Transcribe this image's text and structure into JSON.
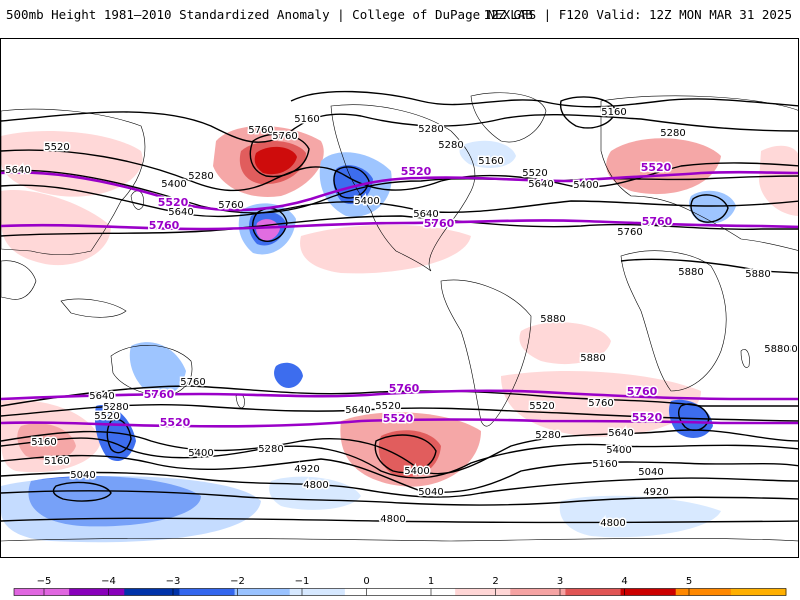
{
  "header": {
    "title": "500mb Height 1981–2010 Standardized Anomaly | College of DuPage NEXLAB",
    "run_info": "12Z GFS | F120 Valid: 12Z MON MAR 31 2025"
  },
  "map": {
    "contour_labels": [
      {
        "text": "5160",
        "kind": "height"
      },
      {
        "text": "5280",
        "kind": "height"
      },
      {
        "text": "5160",
        "kind": "height"
      },
      {
        "text": "5280",
        "kind": "height"
      },
      {
        "text": "5520",
        "kind": "height"
      },
      {
        "text": "5640",
        "kind": "height"
      },
      {
        "text": "5400",
        "kind": "height"
      },
      {
        "text": "5280",
        "kind": "height"
      },
      {
        "text": "5640",
        "kind": "height"
      },
      {
        "text": "5760",
        "kind": "height"
      },
      {
        "text": "5400",
        "kind": "height"
      },
      {
        "text": "5520",
        "kind": "height"
      },
      {
        "text": "5640",
        "kind": "height"
      },
      {
        "text": "5400",
        "kind": "height"
      },
      {
        "text": "5280",
        "kind": "height"
      },
      {
        "text": "5160",
        "kind": "height"
      },
      {
        "text": "5760",
        "kind": "height"
      },
      {
        "text": "5760",
        "kind": "height"
      },
      {
        "text": "5640",
        "kind": "height"
      },
      {
        "text": "5880",
        "kind": "height"
      },
      {
        "text": "5880",
        "kind": "height"
      },
      {
        "text": "5880",
        "kind": "height"
      },
      {
        "text": "5880",
        "kind": "height"
      },
      {
        "text": "5880",
        "kind": "height"
      },
      {
        "text": "5760",
        "kind": "height"
      },
      {
        "text": "5760",
        "kind": "height"
      },
      {
        "text": "5640",
        "kind": "height"
      },
      {
        "text": "5280",
        "kind": "height"
      },
      {
        "text": "5520",
        "kind": "height"
      },
      {
        "text": "5160",
        "kind": "height"
      },
      {
        "text": "5400",
        "kind": "height"
      },
      {
        "text": "5040",
        "kind": "height"
      },
      {
        "text": "5160",
        "kind": "height"
      },
      {
        "text": "5280",
        "kind": "height"
      },
      {
        "text": "4920",
        "kind": "height"
      },
      {
        "text": "4800",
        "kind": "height"
      },
      {
        "text": "5640",
        "kind": "height"
      },
      {
        "text": "5520",
        "kind": "height"
      },
      {
        "text": "5400",
        "kind": "height"
      },
      {
        "text": "5040",
        "kind": "height"
      },
      {
        "text": "5520",
        "kind": "height"
      },
      {
        "text": "5280",
        "kind": "height"
      },
      {
        "text": "5760",
        "kind": "height"
      },
      {
        "text": "5640",
        "kind": "height"
      },
      {
        "text": "5400",
        "kind": "height"
      },
      {
        "text": "5160",
        "kind": "height"
      },
      {
        "text": "5040",
        "kind": "height"
      },
      {
        "text": "4920",
        "kind": "height"
      },
      {
        "text": "4800",
        "kind": "height"
      },
      {
        "text": "4800",
        "kind": "height"
      },
      {
        "text": "5880",
        "kind": "height"
      },
      {
        "text": "5520",
        "kind": "highlight"
      },
      {
        "text": "5520",
        "kind": "highlight"
      },
      {
        "text": "5520",
        "kind": "highlight"
      },
      {
        "text": "5760",
        "kind": "highlight"
      },
      {
        "text": "5760",
        "kind": "highlight"
      },
      {
        "text": "5760",
        "kind": "highlight"
      },
      {
        "text": "5760",
        "kind": "highlight"
      },
      {
        "text": "5760",
        "kind": "highlight"
      },
      {
        "text": "5760",
        "kind": "highlight"
      },
      {
        "text": "5520",
        "kind": "highlight"
      },
      {
        "text": "5520",
        "kind": "highlight"
      },
      {
        "text": "5520",
        "kind": "highlight"
      }
    ]
  },
  "legend": {
    "ticks": [
      "−5",
      "−4",
      "−3",
      "−2",
      "−1",
      "0",
      "1",
      "2",
      "3",
      "4",
      "5"
    ],
    "colors": [
      "#e066e0",
      "#8800bb",
      "#0033aa",
      "#3366ee",
      "#99c2ff",
      "#d6e8ff",
      "#ffffff",
      "#ffffff",
      "#ffd6d6",
      "#f5a3a3",
      "#e05555",
      "#cc0000",
      "#ff8800",
      "#ffb000"
    ]
  }
}
